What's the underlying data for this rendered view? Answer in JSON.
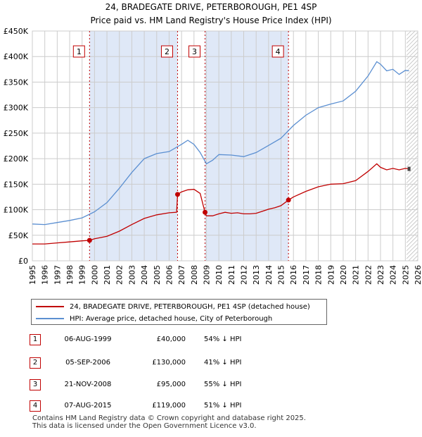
{
  "chart_data": {
    "type": "line",
    "title": "24, BRADEGATE DRIVE, PETERBOROUGH, PE1 4SP",
    "subtitle": "Price paid vs. HM Land Registry's House Price Index (HPI)",
    "xlim": [
      1995,
      2026
    ],
    "ylim": [
      0,
      450000
    ],
    "x_ticks": [
      "1995",
      "1996",
      "1997",
      "1998",
      "1999",
      "2000",
      "2001",
      "2002",
      "2003",
      "2004",
      "2005",
      "2006",
      "2007",
      "2008",
      "2009",
      "2010",
      "2011",
      "2012",
      "2013",
      "2014",
      "2015",
      "2016",
      "2017",
      "2018",
      "2019",
      "2020",
      "2021",
      "2022",
      "2023",
      "2024",
      "2025",
      "2026"
    ],
    "y_ticks": [
      {
        "value": 0,
        "label": "£0"
      },
      {
        "value": 50000,
        "label": "£50K"
      },
      {
        "value": 100000,
        "label": "£100K"
      },
      {
        "value": 150000,
        "label": "£150K"
      },
      {
        "value": 200000,
        "label": "£200K"
      },
      {
        "value": 250000,
        "label": "£250K"
      },
      {
        "value": 300000,
        "label": "£300K"
      },
      {
        "value": 350000,
        "label": "£350K"
      },
      {
        "value": 400000,
        "label": "£400K"
      },
      {
        "value": 450000,
        "label": "£450K"
      }
    ],
    "grid": true,
    "colors": {
      "price": "#c00000",
      "hpi": "#5b8fd1",
      "shade": "#dfe8f7",
      "marker_line": "#c00000"
    },
    "series": [
      {
        "name": "24, BRADEGATE DRIVE, PETERBOROUGH, PE1 4SP (detached house)",
        "x": [
          1995.0,
          1996.0,
          1997.0,
          1998.0,
          1999.0,
          1999.6,
          2000.0,
          2001.0,
          2002.0,
          2003.0,
          2004.0,
          2005.0,
          2006.0,
          2006.6,
          2006.68,
          2007.0,
          2007.5,
          2008.0,
          2008.5,
          2008.88,
          2009.0,
          2009.5,
          2010.0,
          2010.5,
          2011.0,
          2011.5,
          2012.0,
          2012.5,
          2013.0,
          2013.5,
          2014.0,
          2014.5,
          2015.0,
          2015.6,
          2016.0,
          2017.0,
          2018.0,
          2019.0,
          2020.0,
          2021.0,
          2022.0,
          2022.7,
          2023.0,
          2023.5,
          2024.0,
          2024.5,
          2025.0,
          2025.3
        ],
        "values": [
          33000,
          33000,
          35000,
          37000,
          39000,
          40000,
          43000,
          48000,
          58000,
          71000,
          83000,
          90000,
          94000,
          95000,
          130000,
          135000,
          139000,
          140000,
          132000,
          95000,
          88000,
          88000,
          92000,
          95000,
          93000,
          94000,
          92000,
          92000,
          93000,
          97000,
          101000,
          104000,
          108000,
          119000,
          125000,
          136000,
          145000,
          150000,
          151000,
          157000,
          175000,
          190000,
          183000,
          178000,
          181000,
          178000,
          181000,
          180000
        ]
      },
      {
        "name": "HPI: Average price, detached house, City of Peterborough",
        "x": [
          1995.0,
          1996.0,
          1997.0,
          1998.0,
          1999.0,
          2000.0,
          2001.0,
          2002.0,
          2003.0,
          2004.0,
          2005.0,
          2006.0,
          2007.0,
          2007.5,
          2008.0,
          2008.5,
          2009.0,
          2009.5,
          2010.0,
          2011.0,
          2012.0,
          2013.0,
          2014.0,
          2015.0,
          2016.0,
          2017.0,
          2018.0,
          2019.0,
          2020.0,
          2021.0,
          2022.0,
          2022.7,
          2023.0,
          2023.5,
          2024.0,
          2024.5,
          2025.0,
          2025.3
        ],
        "values": [
          72000,
          71000,
          75000,
          79000,
          84000,
          96000,
          114000,
          142000,
          173000,
          200000,
          210000,
          214000,
          228000,
          236000,
          228000,
          212000,
          190000,
          197000,
          208000,
          207000,
          204000,
          212000,
          226000,
          240000,
          265000,
          285000,
          300000,
          307000,
          313000,
          332000,
          362000,
          390000,
          385000,
          372000,
          375000,
          365000,
          373000,
          372000
        ]
      }
    ],
    "transactions": [
      {
        "num": "1",
        "x": 1999.6,
        "value": 40000,
        "date": "06-AUG-1999",
        "price": "£40,000",
        "hpi": "54% ↓ HPI"
      },
      {
        "num": "2",
        "x": 2006.68,
        "value": 130000,
        "date": "05-SEP-2006",
        "price": "£130,000",
        "hpi": "41% ↓ HPI"
      },
      {
        "num": "3",
        "x": 2008.89,
        "value": 95000,
        "date": "21-NOV-2008",
        "price": "£95,000",
        "hpi": "55% ↓ HPI"
      },
      {
        "num": "4",
        "x": 2015.6,
        "value": 119000,
        "date": "07-AUG-2015",
        "price": "£119,000",
        "hpi": "51% ↓ HPI"
      }
    ],
    "shaded_ranges": [
      [
        1999.6,
        2006.68
      ],
      [
        2008.89,
        2015.6
      ]
    ],
    "hatch_from": 2025.1
  },
  "legend": {
    "price_label": "24, BRADEGATE DRIVE, PETERBOROUGH, PE1 4SP (detached house)",
    "hpi_label": "HPI: Average price, detached house, City of Peterborough"
  },
  "footer": {
    "line1": "Contains HM Land Registry data © Crown copyright and database right 2025.",
    "line2": "This data is licensed under the Open Government Licence v3.0."
  }
}
